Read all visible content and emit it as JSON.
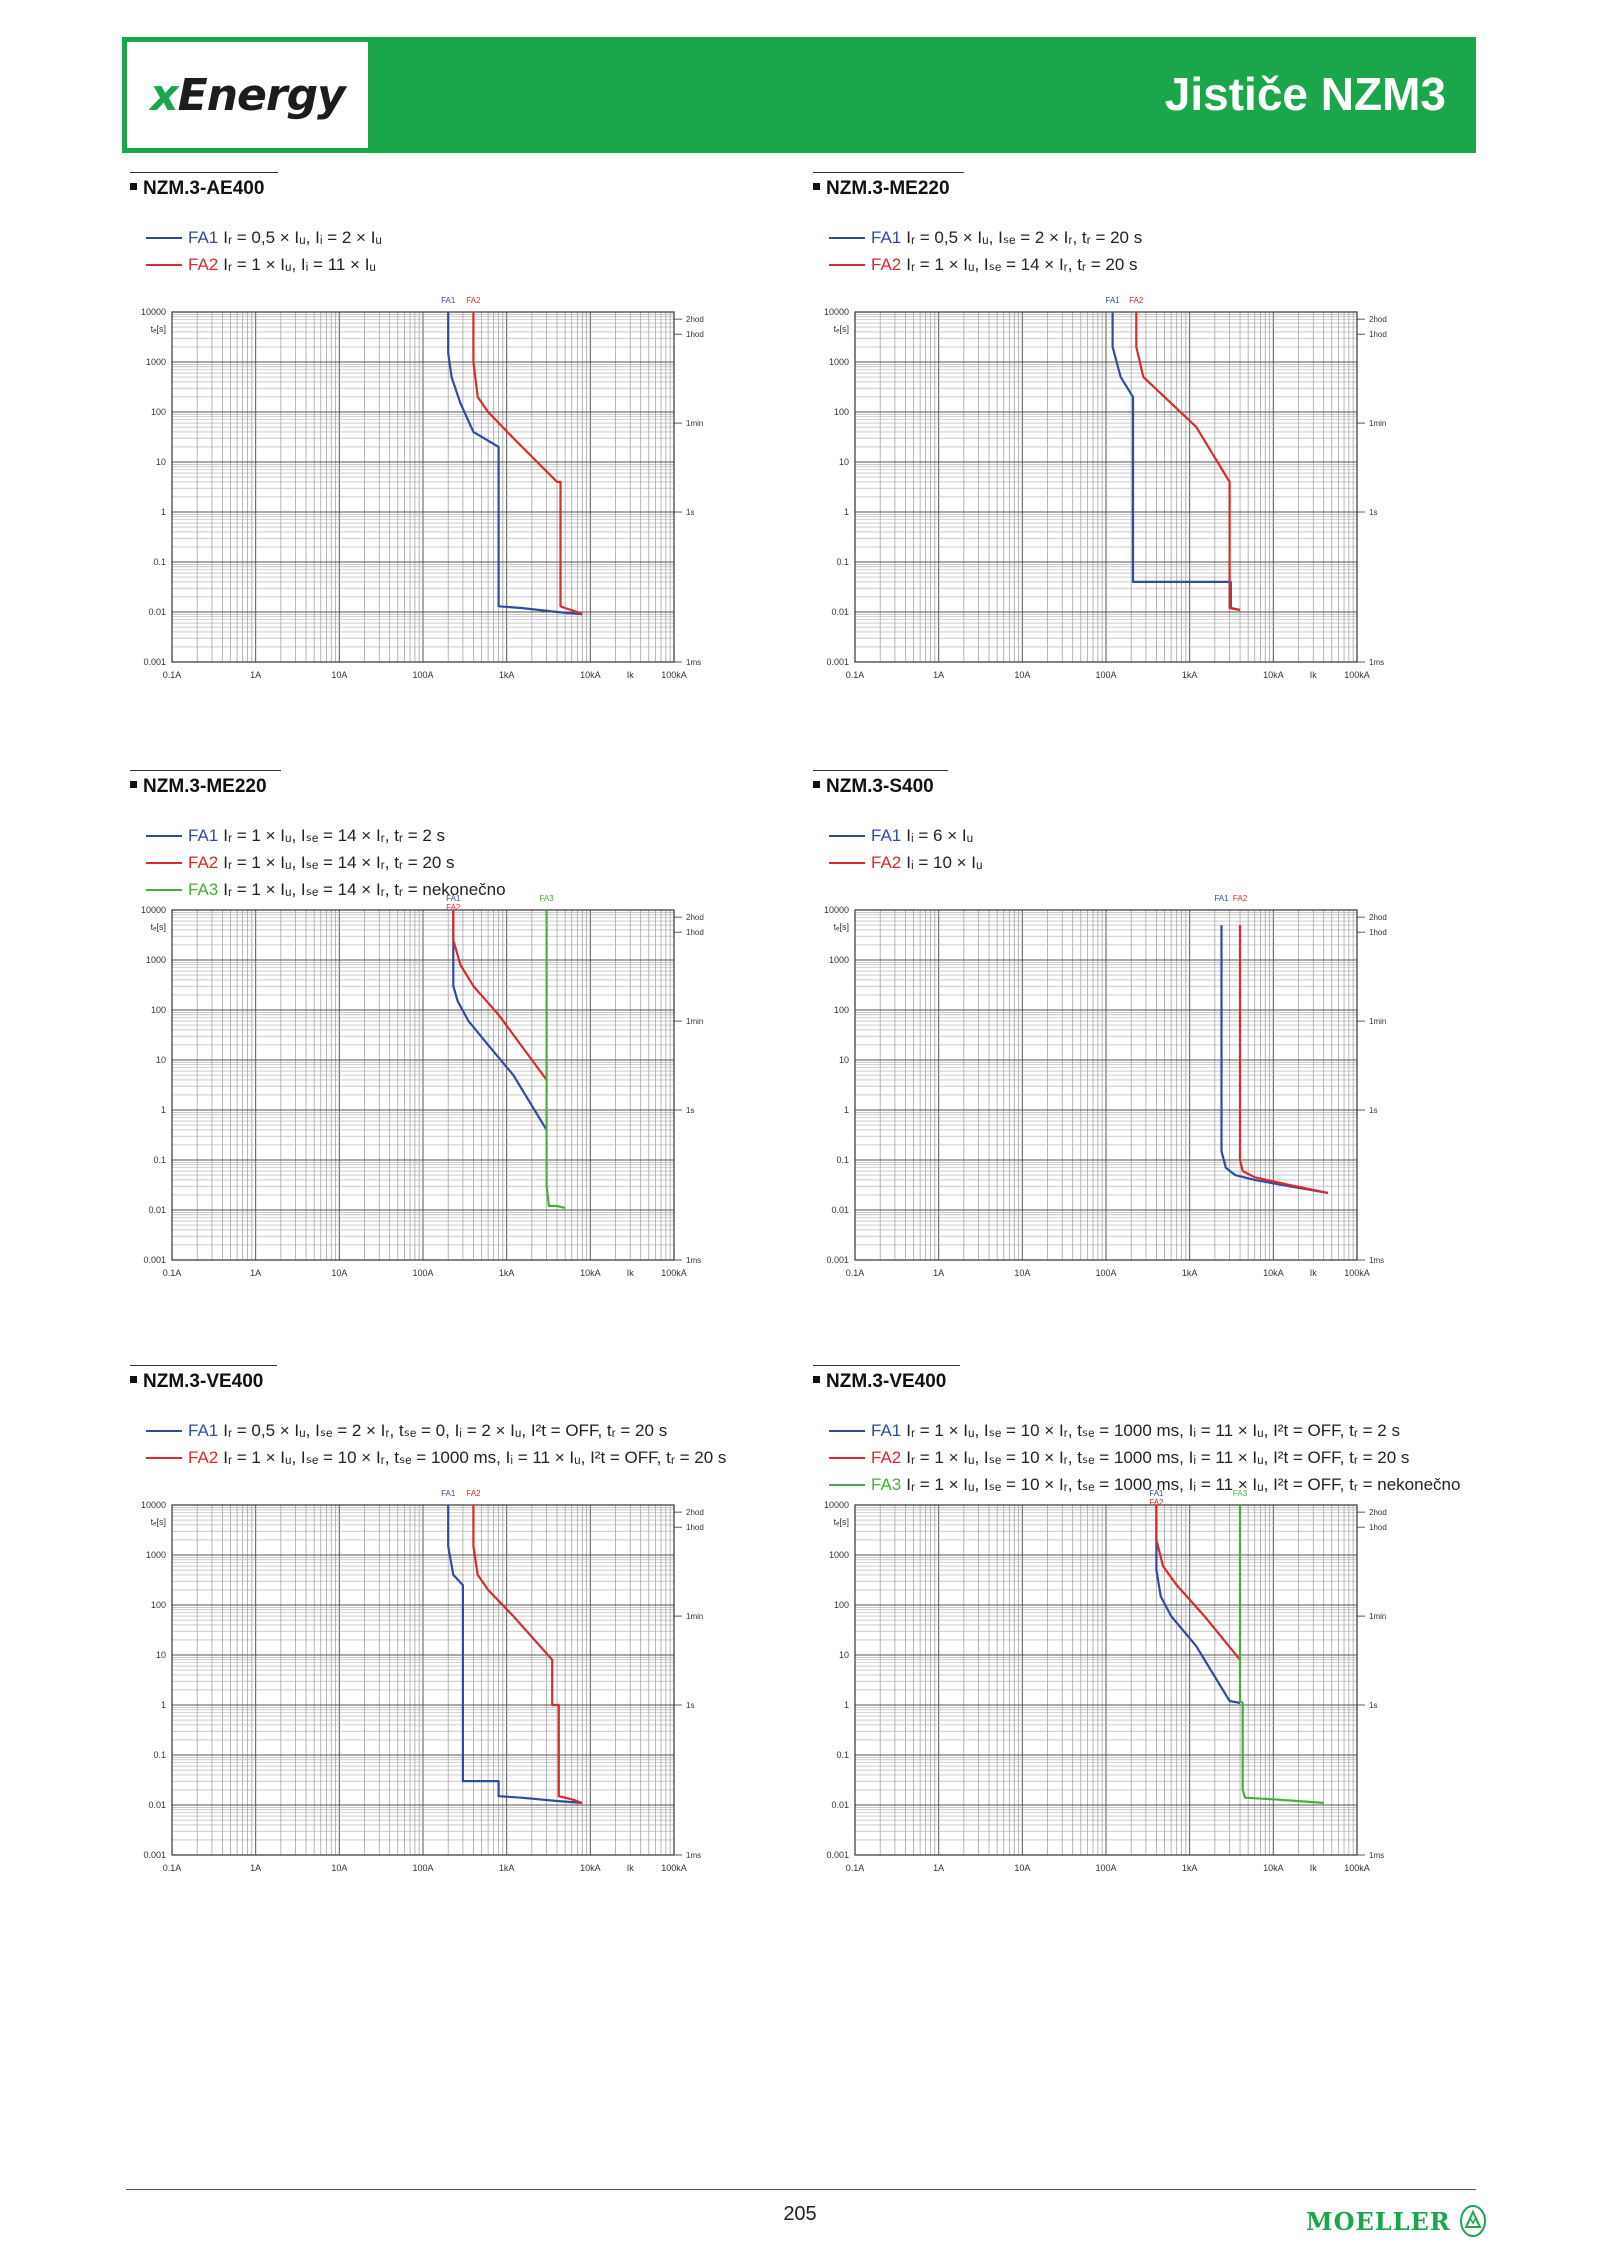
{
  "header": {
    "logo_prefix": "x",
    "logo_rest": "Energy",
    "title": "Jističe NZM3"
  },
  "page_number": "205",
  "brand": {
    "text": "MOELLER",
    "icon": "moeller-emblem-icon"
  },
  "colors": {
    "green": "#1ba64b",
    "fa1": "#2f4d9c",
    "fa2": "#d92b2b",
    "fa3": "#49ad3c"
  },
  "chart_data": [
    {
      "type": "line",
      "id": "ae400",
      "title": "NZM.3-AE400",
      "ylabel": "tₑ[s]",
      "legend": [
        {
          "name": "FA1",
          "text": "Iᵣ = 0,5 × Iᵤ, Iᵢ = 2 × Iᵤ",
          "color": "#2f4d9c"
        },
        {
          "name": "FA2",
          "text": "Iᵣ = 1 × Iᵤ, Iᵢ = 11 × Iᵤ",
          "color": "#d92b2b"
        }
      ],
      "top_labels": [
        {
          "text": "FA1",
          "x": 200,
          "color": "#2f4d9c"
        },
        {
          "text": "FA2",
          "x": 400,
          "color": "#d92b2b"
        }
      ],
      "series": [
        {
          "name": "FA1",
          "color": "#2f4d9c",
          "points": [
            [
              200,
              10000
            ],
            [
              200,
              1500
            ],
            [
              220,
              500
            ],
            [
              280,
              150
            ],
            [
              400,
              40
            ],
            [
              800,
              20
            ],
            [
              800,
              0.013
            ],
            [
              1500,
              0.012
            ],
            [
              4000,
              0.01
            ],
            [
              8000,
              0.009
            ]
          ]
        },
        {
          "name": "FA2",
          "color": "#d92b2b",
          "points": [
            [
              400,
              10000
            ],
            [
              400,
              1000
            ],
            [
              450,
              200
            ],
            [
              600,
              100
            ],
            [
              1200,
              30
            ],
            [
              4000,
              4
            ],
            [
              4400,
              4
            ],
            [
              4400,
              0.013
            ],
            [
              5000,
              0.012
            ],
            [
              7000,
              0.01
            ],
            [
              8000,
              0.009
            ]
          ]
        }
      ]
    },
    {
      "type": "line",
      "id": "me220a",
      "title": "NZM.3-ME220",
      "ylabel": "tₑ[s]",
      "legend": [
        {
          "name": "FA1",
          "text": "Iᵣ = 0,5 × Iᵤ, Iₛₑ = 2 × Iᵣ, tᵣ = 20 s",
          "color": "#2f4d9c"
        },
        {
          "name": "FA2",
          "text": "Iᵣ = 1 × Iᵤ, Iₛₑ = 14 × Iᵣ, tᵣ = 20 s",
          "color": "#d92b2b"
        }
      ],
      "top_labels": [
        {
          "text": "FA1",
          "x": 120,
          "color": "#2f4d9c"
        },
        {
          "text": "FA2",
          "x": 230,
          "color": "#d92b2b"
        }
      ],
      "series": [
        {
          "name": "FA1",
          "color": "#2f4d9c",
          "points": [
            [
              120,
              10000
            ],
            [
              120,
              2000
            ],
            [
              150,
              500
            ],
            [
              210,
              200
            ],
            [
              210,
              0.04
            ],
            [
              3100,
              0.04
            ],
            [
              3100,
              0.012
            ],
            [
              4000,
              0.011
            ]
          ]
        },
        {
          "name": "FA2",
          "color": "#d92b2b",
          "points": [
            [
              230,
              10000
            ],
            [
              230,
              2000
            ],
            [
              280,
              500
            ],
            [
              500,
              200
            ],
            [
              1200,
              50
            ],
            [
              3000,
              4
            ],
            [
              3000,
              0.012
            ],
            [
              4000,
              0.011
            ]
          ]
        }
      ]
    },
    {
      "type": "line",
      "id": "me220b",
      "title": "NZM.3-ME220",
      "ylabel": "tₑ[s]",
      "legend": [
        {
          "name": "FA1",
          "text": "Iᵣ = 1 × Iᵤ, Iₛₑ = 14 × Iᵣ, tᵣ = 2 s",
          "color": "#2f4d9c"
        },
        {
          "name": "FA2",
          "text": "Iᵣ = 1 × Iᵤ, Iₛₑ = 14 × Iᵣ, tᵣ = 20 s",
          "color": "#d92b2b"
        },
        {
          "name": "FA3",
          "text": "Iᵣ = 1 × Iᵤ, Iₛₑ = 14 × Iᵣ, tᵣ = nekonečno",
          "color": "#49ad3c"
        }
      ],
      "top_labels": [
        {
          "text": "FA1",
          "x": 230,
          "color": "#2f4d9c"
        },
        {
          "text": "FA2",
          "x": 230,
          "color": "#d92b2b"
        },
        {
          "text": "FA3",
          "x": 3000,
          "color": "#49ad3c"
        }
      ],
      "series": [
        {
          "name": "FA1",
          "color": "#2f4d9c",
          "points": [
            [
              230,
              10000
            ],
            [
              230,
              300
            ],
            [
              260,
              150
            ],
            [
              350,
              60
            ],
            [
              600,
              20
            ],
            [
              1200,
              5
            ],
            [
              3000,
              0.4
            ]
          ]
        },
        {
          "name": "FA2",
          "color": "#d92b2b",
          "points": [
            [
              230,
              10000
            ],
            [
              230,
              2500
            ],
            [
              280,
              800
            ],
            [
              400,
              300
            ],
            [
              800,
              80
            ],
            [
              3000,
              4
            ]
          ]
        },
        {
          "name": "FA3",
          "color": "#49ad3c",
          "points": [
            [
              3000,
              10000
            ],
            [
              3000,
              0.03
            ],
            [
              3200,
              0.012
            ],
            [
              4000,
              0.012
            ],
            [
              5000,
              0.011
            ]
          ]
        }
      ]
    },
    {
      "type": "line",
      "id": "s400",
      "title": "NZM.3-S400",
      "ylabel": "tₑ[s]",
      "legend": [
        {
          "name": "FA1",
          "text": "Iᵢ = 6 × Iᵤ",
          "color": "#2f4d9c"
        },
        {
          "name": "FA2",
          "text": "Iᵢ = 10 × Iᵤ",
          "color": "#d92b2b"
        }
      ],
      "top_labels": [
        {
          "text": "FA1",
          "x": 2400,
          "color": "#2f4d9c"
        },
        {
          "text": "FA2",
          "x": 4000,
          "color": "#d92b2b"
        }
      ],
      "series": [
        {
          "name": "FA1",
          "color": "#2f4d9c",
          "points": [
            [
              2400,
              5000
            ],
            [
              2400,
              0.15
            ],
            [
              2700,
              0.07
            ],
            [
              3500,
              0.05
            ],
            [
              6000,
              0.04
            ],
            [
              15000,
              0.03
            ],
            [
              45000,
              0.022
            ]
          ]
        },
        {
          "name": "FA2",
          "color": "#d92b2b",
          "points": [
            [
              4000,
              5000
            ],
            [
              4000,
              0.1
            ],
            [
              4300,
              0.06
            ],
            [
              6000,
              0.045
            ],
            [
              15000,
              0.032
            ],
            [
              45000,
              0.022
            ]
          ]
        }
      ]
    },
    {
      "type": "line",
      "id": "ve400a",
      "title": "NZM.3-VE400",
      "ylabel": "tₑ[s]",
      "legend": [
        {
          "name": "FA1",
          "text": "Iᵣ = 0,5 × Iᵤ, Iₛₑ = 2 × Iᵣ, tₛₑ = 0, Iᵢ = 2 × Iᵤ, I²t = OFF, tᵣ = 20 s",
          "color": "#2f4d9c"
        },
        {
          "name": "FA2",
          "text": "Iᵣ = 1 × Iᵤ, Iₛₑ = 10 × Iᵣ, tₛₑ = 1000 ms, Iᵢ = 11 × Iᵤ, I²t = OFF, tᵣ = 20 s",
          "color": "#d92b2b"
        }
      ],
      "top_labels": [
        {
          "text": "FA1",
          "x": 200,
          "color": "#2f4d9c"
        },
        {
          "text": "FA2",
          "x": 400,
          "color": "#d92b2b"
        }
      ],
      "series": [
        {
          "name": "FA1",
          "color": "#2f4d9c",
          "points": [
            [
              200,
              10000
            ],
            [
              200,
              1500
            ],
            [
              230,
              400
            ],
            [
              300,
              250
            ],
            [
              300,
              0.03
            ],
            [
              800,
              0.03
            ],
            [
              800,
              0.015
            ],
            [
              1500,
              0.014
            ],
            [
              4000,
              0.012
            ],
            [
              8000,
              0.011
            ]
          ]
        },
        {
          "name": "FA2",
          "color": "#d92b2b",
          "points": [
            [
              400,
              10000
            ],
            [
              400,
              1500
            ],
            [
              450,
              400
            ],
            [
              600,
              200
            ],
            [
              1200,
              60
            ],
            [
              3500,
              8
            ],
            [
              3500,
              1
            ],
            [
              4200,
              1
            ],
            [
              4200,
              0.015
            ],
            [
              6000,
              0.013
            ],
            [
              8000,
              0.011
            ]
          ]
        }
      ]
    },
    {
      "type": "line",
      "id": "ve400b",
      "title": "NZM.3-VE400",
      "ylabel": "tₑ[s]",
      "legend": [
        {
          "name": "FA1",
          "text": "Iᵣ = 1 × Iᵤ, Iₛₑ = 10 × Iᵣ, tₛₑ = 1000 ms, Iᵢ = 11 × Iᵤ, I²t = OFF, tᵣ = 2 s",
          "color": "#2f4d9c"
        },
        {
          "name": "FA2",
          "text": "Iᵣ = 1 × Iᵤ, Iₛₑ = 10 × Iᵣ, tₛₑ = 1000 ms, Iᵢ = 11 × Iᵤ, I²t = OFF, tᵣ = 20 s",
          "color": "#d92b2b"
        },
        {
          "name": "FA3",
          "text": "Iᵣ = 1 × Iᵤ, Iₛₑ = 10 × Iᵣ, tₛₑ = 1000 ms, Iᵢ = 11 × Iᵤ, I²t = OFF, tᵣ = nekonečno",
          "color": "#49ad3c"
        }
      ],
      "top_labels": [
        {
          "text": "FA1",
          "x": 400,
          "color": "#2f4d9c"
        },
        {
          "text": "FA2",
          "x": 400,
          "color": "#d92b2b"
        },
        {
          "text": "FA3",
          "x": 4000,
          "color": "#49ad3c"
        }
      ],
      "series": [
        {
          "name": "FA1",
          "color": "#2f4d9c",
          "points": [
            [
              400,
              10000
            ],
            [
              400,
              500
            ],
            [
              450,
              150
            ],
            [
              600,
              60
            ],
            [
              1200,
              15
            ],
            [
              3000,
              1.2
            ],
            [
              4000,
              1.1
            ]
          ]
        },
        {
          "name": "FA2",
          "color": "#d92b2b",
          "points": [
            [
              400,
              10000
            ],
            [
              400,
              2000
            ],
            [
              480,
              600
            ],
            [
              700,
              250
            ],
            [
              1500,
              60
            ],
            [
              4000,
              8
            ]
          ]
        },
        {
          "name": "FA3",
          "color": "#49ad3c",
          "points": [
            [
              4000,
              10000
            ],
            [
              4000,
              1.2
            ],
            [
              4300,
              1.1
            ],
            [
              4300,
              0.02
            ],
            [
              4600,
              0.014
            ],
            [
              10000,
              0.013
            ],
            [
              40000,
              0.011
            ]
          ]
        }
      ]
    }
  ],
  "axes": {
    "x_ticks": [
      {
        "v": 0.1,
        "label": "0.1A"
      },
      {
        "v": 1,
        "label": "1A"
      },
      {
        "v": 10,
        "label": "10A"
      },
      {
        "v": 100,
        "label": "100A"
      },
      {
        "v": 1000,
        "label": "1kA"
      },
      {
        "v": 10000,
        "label": "10kA"
      },
      {
        "v": 30000,
        "label": "Ik"
      },
      {
        "v": 100000,
        "label": "100kA"
      }
    ],
    "y_ticks": [
      {
        "v": 10000,
        "label": "10000"
      },
      {
        "v": 1000,
        "label": "1000"
      },
      {
        "v": 100,
        "label": "100"
      },
      {
        "v": 10,
        "label": "10"
      },
      {
        "v": 1,
        "label": "1"
      },
      {
        "v": 0.1,
        "label": "0.1"
      },
      {
        "v": 0.01,
        "label": "0.01"
      },
      {
        "v": 0.001,
        "label": "0.001"
      }
    ],
    "right_labels": [
      {
        "v": 7200,
        "label": "2hod"
      },
      {
        "v": 3600,
        "label": "1hod"
      },
      {
        "v": 60,
        "label": "1min"
      },
      {
        "v": 1,
        "label": "1s"
      },
      {
        "v": 0.001,
        "label": "1ms"
      }
    ],
    "xlim": [
      0.1,
      100000
    ],
    "ylim": [
      0.001,
      10000
    ],
    "x_scale": "log",
    "y_scale": "log",
    "grid": true
  }
}
